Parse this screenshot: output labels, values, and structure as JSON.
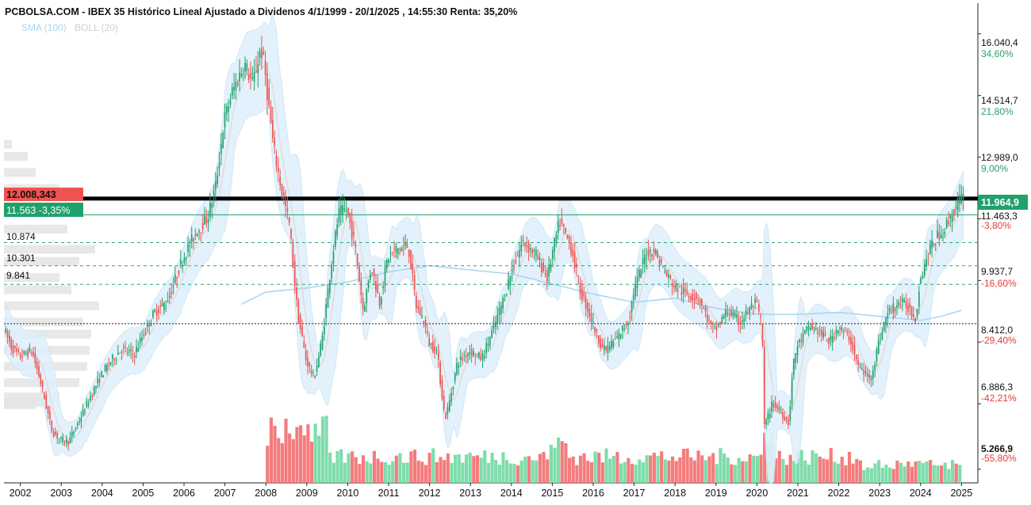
{
  "header": {
    "title": "PCBOLSA.COM - IBEX 35 Histórico Lineal Ajustado a Dividenos 4/1/1999 - 20/1/2025 , 14:55:30 Renta: 35,20%",
    "indicators": [
      {
        "label": "SMA (100)",
        "color": "#a9d4f0"
      },
      {
        "label": "BOLL (20)",
        "color": "#cfcfcf"
      }
    ]
  },
  "colors": {
    "up": "#22a06b",
    "down": "#ef5350",
    "vol_up": "#7fdcab",
    "vol_down": "#f47c7c",
    "band": "#dff0fb",
    "sma": "#a9d4f0",
    "boll_mid": "#e2d6d0"
  },
  "chart_data": {
    "type": "candlestick",
    "title": "PCBOLSA.COM - IBEX 35 Histórico Lineal Ajustado a Dividenos 4/1/1999 - 20/1/2025 , 14:55:30 Renta: 35,20%",
    "x_range": [
      2001.6,
      2025.4
    ],
    "y_range": [
      4930,
      16800
    ],
    "x_ticks": [
      "2002",
      "2003",
      "2004",
      "2005",
      "2006",
      "2007",
      "2008",
      "2009",
      "2010",
      "2011",
      "2012",
      "2013",
      "2014",
      "2015",
      "2016",
      "2017",
      "2018",
      "2019",
      "2020",
      "2021",
      "2022",
      "2023",
      "2024",
      "2025"
    ],
    "y_ticks": [
      {
        "value": 16040.4,
        "label": "16.040,4",
        "pct": "34,60%"
      },
      {
        "value": 14514.7,
        "label": "14.514,7",
        "pct": "21,80%"
      },
      {
        "value": 12989.0,
        "label": "12.989,0",
        "pct": "9,00%"
      },
      {
        "value": 11463.3,
        "label": "11.463,3",
        "pct": "-3,80%"
      },
      {
        "value": 9937.7,
        "label": "9.937,7",
        "pct": "-16,60%"
      },
      {
        "value": 8412.0,
        "label": "8.412,0",
        "pct": "-29,40%"
      },
      {
        "value": 6886.3,
        "label": "6.886,3",
        "pct": "-42,21%"
      },
      {
        "value": 5266.9,
        "label": "5.266,9",
        "pct": "-55,80%"
      }
    ],
    "last_price": {
      "value": 11964.9,
      "label": "11.964,9"
    },
    "left_boxes": [
      {
        "label": "12.008,343",
        "value": 12008.3
      },
      {
        "label": "11.563  -3,35%",
        "value": 11563
      }
    ],
    "levels": [
      {
        "label": "10.874",
        "value": 10874
      },
      {
        "label": "10.301",
        "value": 10301
      },
      {
        "label": "9.841",
        "value": 9841
      }
    ],
    "reference_line": 8870,
    "price_path": [
      [
        2001.6,
        8800
      ],
      [
        2001.8,
        8300
      ],
      [
        2002.0,
        8050
      ],
      [
        2002.3,
        8200
      ],
      [
        2002.5,
        7500
      ],
      [
        2002.8,
        6200
      ],
      [
        2003.0,
        6000
      ],
      [
        2003.2,
        5950
      ],
      [
        2003.5,
        6550
      ],
      [
        2003.8,
        7200
      ],
      [
        2004.0,
        7600
      ],
      [
        2004.2,
        7900
      ],
      [
        2004.5,
        8250
      ],
      [
        2004.8,
        8100
      ],
      [
        2005.0,
        8550
      ],
      [
        2005.3,
        9150
      ],
      [
        2005.6,
        9400
      ],
      [
        2005.8,
        9950
      ],
      [
        2006.0,
        10500
      ],
      [
        2006.3,
        11100
      ],
      [
        2006.6,
        11500
      ],
      [
        2006.8,
        12300
      ],
      [
        2007.0,
        13900
      ],
      [
        2007.2,
        14600
      ],
      [
        2007.5,
        15300
      ],
      [
        2007.7,
        14800
      ],
      [
        2007.9,
        15700
      ],
      [
        2008.0,
        15100
      ],
      [
        2008.2,
        13300
      ],
      [
        2008.4,
        12200
      ],
      [
        2008.6,
        11300
      ],
      [
        2008.8,
        9100
      ],
      [
        2009.0,
        8000
      ],
      [
        2009.2,
        7500
      ],
      [
        2009.4,
        8500
      ],
      [
        2009.6,
        10200
      ],
      [
        2009.8,
        11600
      ],
      [
        2010.0,
        11700
      ],
      [
        2010.2,
        10800
      ],
      [
        2010.4,
        9200
      ],
      [
        2010.6,
        10300
      ],
      [
        2010.8,
        9400
      ],
      [
        2011.0,
        10500
      ],
      [
        2011.2,
        10700
      ],
      [
        2011.5,
        10800
      ],
      [
        2011.7,
        9300
      ],
      [
        2011.9,
        8900
      ],
      [
        2012.0,
        8400
      ],
      [
        2012.2,
        8200
      ],
      [
        2012.4,
        6500
      ],
      [
        2012.5,
        6900
      ],
      [
        2012.7,
        7900
      ],
      [
        2013.0,
        8200
      ],
      [
        2013.3,
        8000
      ],
      [
        2013.6,
        8800
      ],
      [
        2013.9,
        9700
      ],
      [
        2014.0,
        10100
      ],
      [
        2014.3,
        10900
      ],
      [
        2014.6,
        10600
      ],
      [
        2014.9,
        10000
      ],
      [
        2015.0,
        10500
      ],
      [
        2015.2,
        11400
      ],
      [
        2015.5,
        10700
      ],
      [
        2015.7,
        9700
      ],
      [
        2015.9,
        9200
      ],
      [
        2016.1,
        8600
      ],
      [
        2016.3,
        8200
      ],
      [
        2016.6,
        8500
      ],
      [
        2016.9,
        9000
      ],
      [
        2017.0,
        9600
      ],
      [
        2017.3,
        10600
      ],
      [
        2017.5,
        10700
      ],
      [
        2017.8,
        10100
      ],
      [
        2018.0,
        9800
      ],
      [
        2018.3,
        9600
      ],
      [
        2018.6,
        9500
      ],
      [
        2018.9,
        8800
      ],
      [
        2019.0,
        8700
      ],
      [
        2019.3,
        9200
      ],
      [
        2019.6,
        8900
      ],
      [
        2019.9,
        9300
      ],
      [
        2020.0,
        9400
      ],
      [
        2020.15,
        8800
      ],
      [
        2020.2,
        6300
      ],
      [
        2020.4,
        6900
      ],
      [
        2020.6,
        6700
      ],
      [
        2020.8,
        6400
      ],
      [
        2020.9,
        7800
      ],
      [
        2021.0,
        8300
      ],
      [
        2021.3,
        8800
      ],
      [
        2021.5,
        8700
      ],
      [
        2021.8,
        8400
      ],
      [
        2022.0,
        8800
      ],
      [
        2022.3,
        8500
      ],
      [
        2022.5,
        7800
      ],
      [
        2022.8,
        7500
      ],
      [
        2023.0,
        8400
      ],
      [
        2023.2,
        9100
      ],
      [
        2023.5,
        9400
      ],
      [
        2023.7,
        9300
      ],
      [
        2023.9,
        9000
      ],
      [
        2024.0,
        9900
      ],
      [
        2024.2,
        10600
      ],
      [
        2024.4,
        11000
      ],
      [
        2024.6,
        11200
      ],
      [
        2024.8,
        11600
      ],
      [
        2025.0,
        11964.9
      ]
    ],
    "sma100_path": [
      [
        2007.4,
        9350
      ],
      [
        2008.0,
        9650
      ],
      [
        2009.0,
        9750
      ],
      [
        2010.0,
        9900
      ],
      [
        2011.0,
        10150
      ],
      [
        2012.0,
        10300
      ],
      [
        2013.0,
        10200
      ],
      [
        2014.0,
        10100
      ],
      [
        2015.0,
        9850
      ],
      [
        2016.0,
        9600
      ],
      [
        2017.0,
        9400
      ],
      [
        2018.0,
        9500
      ],
      [
        2019.0,
        9250
      ],
      [
        2020.0,
        9100
      ],
      [
        2021.0,
        9100
      ],
      [
        2022.0,
        9150
      ],
      [
        2023.0,
        9050
      ],
      [
        2024.0,
        8950
      ],
      [
        2024.5,
        9050
      ],
      [
        2025.0,
        9200
      ]
    ]
  }
}
